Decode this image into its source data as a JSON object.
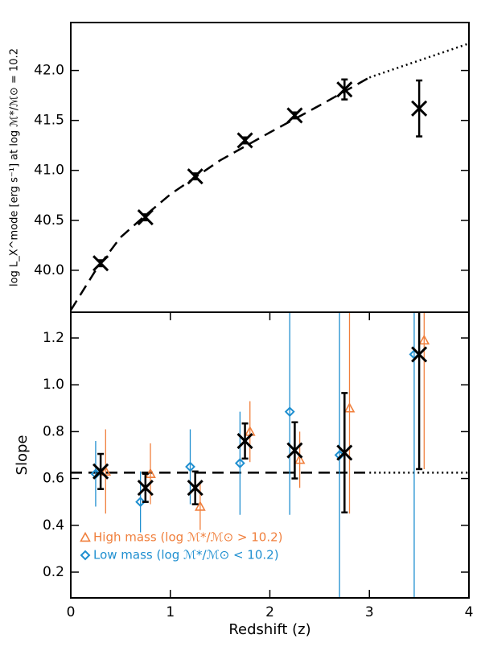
{
  "chart_data": [
    {
      "type": "scatter",
      "ylabel": "log L_X^mode [erg s⁻¹] at log ℳ*/ℳ⊙ = 10.2",
      "xlim": [
        0,
        4
      ],
      "ylim": [
        39.58,
        42.48
      ],
      "yticks": [
        {
          "value": 40,
          "label": "40.0"
        },
        40.5,
        {
          "value": 41,
          "label": "41.0"
        },
        41.5,
        {
          "value": 42,
          "label": "42.0"
        }
      ],
      "series": [
        {
          "type": "line",
          "style": "dashed",
          "color": "#000000",
          "x": [
            0,
            0.25,
            0.5,
            0.75,
            1,
            1.5,
            2,
            2.5,
            3
          ],
          "values": [
            39.6,
            40.0,
            40.33,
            40.55,
            40.76,
            41.1,
            41.38,
            41.65,
            41.93
          ]
        },
        {
          "type": "line",
          "style": "dotted",
          "color": "#000000",
          "x": [
            3,
            3.5,
            4
          ],
          "values": [
            41.93,
            42.1,
            42.27
          ]
        },
        {
          "marker": "x",
          "color": "#000000",
          "x": [
            0.3,
            0.75,
            1.25,
            1.75,
            2.25,
            2.75,
            3.5
          ],
          "values": [
            40.07,
            40.53,
            40.94,
            41.3,
            41.55,
            41.81,
            41.62
          ],
          "errors": [
            0.03,
            0.03,
            0.03,
            0.03,
            0.03,
            0.1,
            0.28
          ]
        }
      ]
    },
    {
      "type": "scatter",
      "ylabel": "Slope",
      "xlabel": "Redshift (z)",
      "xlim": [
        0,
        4
      ],
      "ylim": [
        0.09,
        1.31
      ],
      "xticks": [
        0,
        1,
        2,
        3,
        4
      ],
      "yticks": [
        0.2,
        0.4,
        0.6,
        0.8,
        {
          "value": 1,
          "label": "1.0"
        },
        1.2
      ],
      "legend": "lower left",
      "series": [
        {
          "type": "line",
          "style": "dashed",
          "color": "#000000",
          "x": [
            0,
            3
          ],
          "values": [
            0.625,
            0.625
          ]
        },
        {
          "type": "line",
          "style": "dotted",
          "color": "#000000",
          "x": [
            3,
            4
          ],
          "values": [
            0.625,
            0.625
          ]
        },
        {
          "name": "High mass (log ℳ*/ℳ⊙ > 10.2)",
          "marker": "triangle",
          "color": "#f07f3c",
          "x": [
            0.35,
            0.8,
            1.3,
            1.8,
            2.3,
            2.8,
            3.55
          ],
          "values": [
            0.63,
            0.62,
            0.48,
            0.8,
            0.68,
            0.9,
            1.19
          ],
          "errors": [
            0.18,
            0.13,
            0.1,
            0.13,
            0.12,
            0.45,
            0.55
          ]
        },
        {
          "name": "Low mass (log ℳ*/ℳ⊙ < 10.2)",
          "marker": "diamond",
          "color": "#1f8fd0",
          "x": [
            0.25,
            0.7,
            1.2,
            1.7,
            2.2,
            2.7,
            3.45
          ],
          "values": [
            0.62,
            0.5,
            0.65,
            0.665,
            0.885,
            0.7,
            1.13
          ],
          "errors": [
            0.14,
            0.13,
            0.16,
            0.22,
            0.44,
            0.9,
            1.1
          ]
        },
        {
          "marker": "x",
          "color": "#000000",
          "x": [
            0.3,
            0.75,
            1.25,
            1.75,
            2.25,
            2.75,
            3.5
          ],
          "values": [
            0.63,
            0.56,
            0.56,
            0.76,
            0.72,
            0.71,
            1.13
          ],
          "errors": [
            0.075,
            0.06,
            0.07,
            0.075,
            0.12,
            0.255,
            0.49
          ]
        }
      ]
    }
  ]
}
